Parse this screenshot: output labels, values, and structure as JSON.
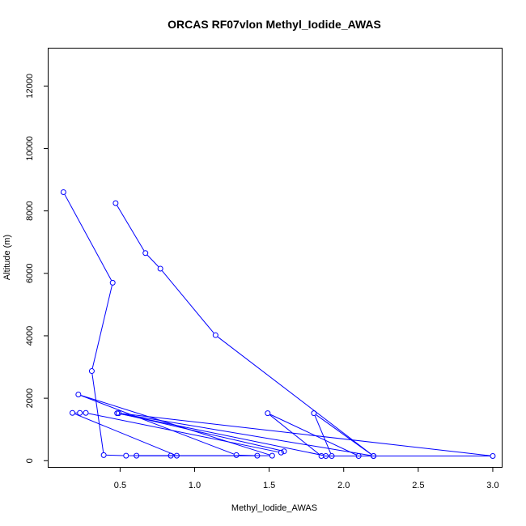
{
  "chart_data": {
    "type": "line",
    "title": "ORCAS RF07vlon Methyl_Iodide_AWAS",
    "xlabel": "Methyl_Iodide_AWAS",
    "ylabel": "Altitude (m)",
    "xlim": [
      0.02,
      3.06
    ],
    "ylim": [
      -200,
      13200
    ],
    "x_ticks": [
      0.5,
      1.0,
      1.5,
      2.0,
      2.5,
      3.0
    ],
    "x_tick_labels": [
      "0.5",
      "1.0",
      "1.5",
      "2.0",
      "2.5",
      "3.0"
    ],
    "y_ticks": [
      0,
      2000,
      4000,
      6000,
      8000,
      10000,
      12000
    ],
    "y_tick_labels": [
      "0",
      "2000",
      "4000",
      "6000",
      "8000",
      "10000",
      "12000"
    ],
    "grid": false,
    "markers": "open-circle",
    "line_color": "#0000ff",
    "series": [
      {
        "x": [
          0.47,
          0.67,
          0.77,
          1.14,
          2.2,
          1.8,
          1.92,
          2.2,
          0.48,
          1.88,
          2.1,
          1.49,
          1.85,
          3.0,
          0.49,
          1.6,
          1.58,
          0.27,
          0.23,
          0.18,
          0.88,
          0.84,
          0.61,
          1.42,
          1.28,
          0.22,
          1.52,
          0.54,
          0.39,
          0.31,
          0.45,
          0.12
        ],
        "y": [
          8250,
          6650,
          6150,
          4020,
          150,
          1520,
          150,
          150,
          1520,
          150,
          150,
          1520,
          150,
          150,
          1520,
          300,
          260,
          1530,
          1530,
          1530,
          160,
          160,
          160,
          160,
          180,
          2120,
          160,
          160,
          180,
          2870,
          5700,
          8600
        ]
      }
    ]
  }
}
